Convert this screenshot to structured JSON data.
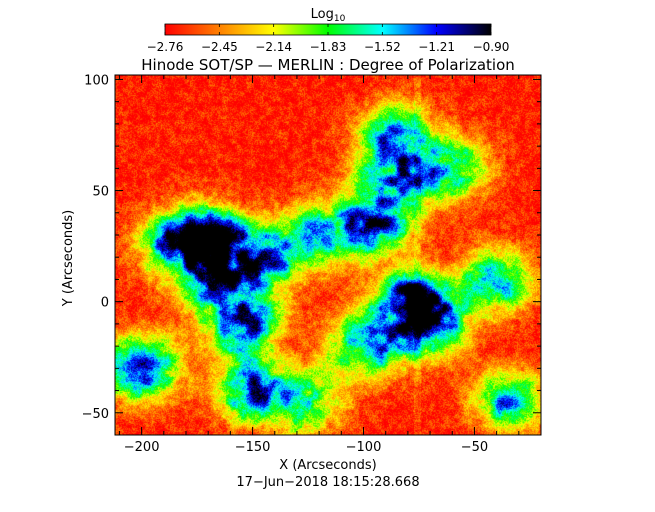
{
  "chart_data": {
    "type": "heatmap",
    "title": "Hinode SOT/SP — MERLIN : Degree of Polarization",
    "colorbar": {
      "label_base": "Log",
      "label_sub": "10",
      "ticks": [
        "−2.76",
        "−2.45",
        "−2.14",
        "−1.83",
        "−1.52",
        "−1.21",
        "−0.90"
      ],
      "range": [
        -2.76,
        -0.9
      ],
      "colors": [
        "#ff0000",
        "#ff8000",
        "#ffff00",
        "#00ff00",
        "#00ffff",
        "#0000ff",
        "#000000"
      ]
    },
    "x_axis": {
      "label": "X (Arcseconds)",
      "range": [
        -212,
        -20
      ],
      "ticks": [
        -200,
        -150,
        -100,
        -50
      ],
      "tick_labels": [
        "−200",
        "−150",
        "−100",
        "−50"
      ]
    },
    "y_axis": {
      "label": "Y (Arcseconds)",
      "range": [
        -60,
        102
      ],
      "ticks": [
        -50,
        0,
        50,
        100
      ],
      "tick_labels": [
        "−50",
        "0",
        "50",
        "100"
      ]
    },
    "timestamp": "17−Jun−2018 18:15:28.668",
    "background_level": -2.7,
    "network_features": [
      {
        "x": -165,
        "y": 10,
        "peak": -1.1
      },
      {
        "x": -155,
        "y": -10,
        "peak": -1.1
      },
      {
        "x": -170,
        "y": 30,
        "peak": -1.2
      },
      {
        "x": -145,
        "y": 20,
        "peak": -1.3
      },
      {
        "x": -185,
        "y": 25,
        "peak": -1.3
      },
      {
        "x": -200,
        "y": -30,
        "peak": -1.1
      },
      {
        "x": -150,
        "y": -40,
        "peak": -1.3
      },
      {
        "x": -80,
        "y": 0,
        "peak": -1.1
      },
      {
        "x": -70,
        "y": -10,
        "peak": -1.1
      },
      {
        "x": -100,
        "y": -20,
        "peak": -1.3
      },
      {
        "x": -95,
        "y": 35,
        "peak": -1.3
      },
      {
        "x": -88,
        "y": 55,
        "peak": -1.4
      },
      {
        "x": -85,
        "y": 75,
        "peak": -1.5
      },
      {
        "x": -60,
        "y": 60,
        "peak": -1.5
      },
      {
        "x": -40,
        "y": 10,
        "peak": -1.5
      },
      {
        "x": -120,
        "y": 30,
        "peak": -1.6
      },
      {
        "x": -125,
        "y": -45,
        "peak": -1.6
      },
      {
        "x": -35,
        "y": -45,
        "peak": -1.6
      }
    ],
    "grid": false,
    "legend": "colorbar-top"
  }
}
